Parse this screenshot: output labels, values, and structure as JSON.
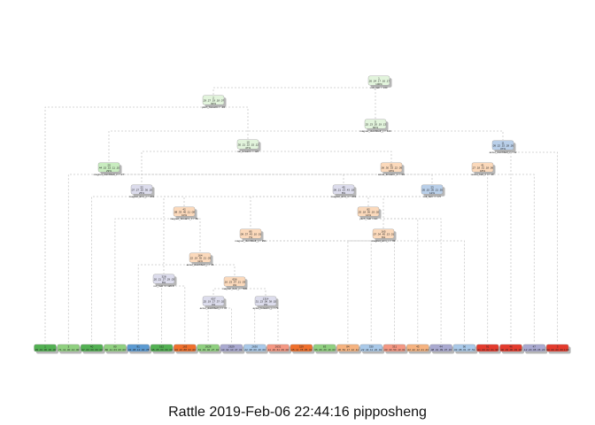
{
  "footer": "Rattle 2019-Feb-06 22:44:16 pipposheng",
  "palette": {
    "green": "#c8ecbf",
    "light_green": "#e2f4dc",
    "peach": "#fbd9bb",
    "lavender": "#dcdcec",
    "blue": "#b9cfe9",
    "salmon": "#f6c2b2",
    "leaf_green_dark": "#52b152",
    "leaf_green": "#8fd07f",
    "leaf_blue": "#5b9ad2",
    "leaf_orange": "#f06f2b",
    "leaf_peach": "#f6b37f",
    "leaf_lavender": "#a9a9d0",
    "leaf_light_blue": "#a9c9e9",
    "leaf_salmon": "#f59782",
    "leaf_red": "#e43a2c",
    "edge": "#c8c8c8",
    "shadow": "#b7b7b7",
    "node_border": "#9a9a9a"
  },
  "nodes": [
    {
      "id": "1",
      "color": "light_green",
      "text": "1\n.26 .24 .17 .16 .17\n100%",
      "split": "roll_belt < 130"
    },
    {
      "id": "2",
      "color": "light_green",
      "text": "2\n.29 .27 .19 .18 .07\n93%",
      "split": "pitch_forearm < -34"
    },
    {
      "id": "3",
      "color": "light_green",
      "text": "5\n.25 .23 .20 .19 .13\n84%",
      "split": "magnet_dumbbell_y < 440"
    },
    {
      "id": "4",
      "color": "light_green",
      "text": "10\n.30 .21 .22 .15 .12\n47%",
      "split": "roll_forearm < 124"
    },
    {
      "id": "5",
      "color": "blue",
      "text": "11\n.09 .22 .15 .28 .26\n37%",
      "split": "accel_dumbbell_z < 12"
    },
    {
      "id": "6",
      "color": "green",
      "text": "20\n.44 .15 .15 .11 .10\n29%",
      "split": "magnet_dumbbell_z < -27"
    },
    {
      "id": "7",
      "color": "peach",
      "text": "21\n.06 .30 .33 .22 .09\n18%",
      "split": "accel_forearm_x < -90"
    },
    {
      "id": "8",
      "color": "lavender",
      "text": "22\n.07 .27 .10 .36 .20\n25%",
      "split": "magnet_arm_y < 291"
    },
    {
      "id": "9",
      "color": "blue",
      "text": "23\n.05 .15 .05 .21 .55\n12%",
      "split": "roll_belt >= 0.5"
    },
    {
      "id": "10",
      "color": "peach",
      "text": "41\n.27 .18 .31 .18 .06\n18%",
      "split": "accel_belt_z >= 19"
    },
    {
      "id": "11",
      "color": "peach",
      "text": "42\n.08 .33 .40 .11 .08\n10%",
      "split": "magnet_forearm_z < 89"
    },
    {
      "id": "12",
      "color": "lavender",
      "text": "45\n.06 .21 .13 .43 .18\n8%",
      "split": "magnet_arm_x < 291"
    },
    {
      "id": "13",
      "color": "peach",
      "text": "82\n.25 .18 .36 .19 .02\n14%",
      "split": "pitch_belt < 42"
    },
    {
      "id": "14",
      "color": "peach",
      "text": "85\n.09 .37 .43 .10 .01\n7%",
      "split": "magnet_dumbbell_y < 291"
    },
    {
      "id": "15",
      "color": "peach",
      "text": "165\n.07 .34 .45 .13 .01\n6%",
      "split": "magnet_arm_x < 99"
    },
    {
      "id": "16",
      "color": "peach",
      "text": "164\n.22 .19 .35 .21 .03\n11%",
      "split": "accel_dumbbell_y < 46"
    },
    {
      "id": "17",
      "color": "lavender",
      "text": "328\n.20 .21 .27 .29 .03\n8%",
      "split": "roll_belt >= 126.5"
    },
    {
      "id": "18",
      "color": "peach",
      "text": "656\n.16 .23 .37 .21 .03\n4%",
      "split": "magnet_belt_y < 590"
    },
    {
      "id": "19",
      "color": "lavender",
      "text": "657\n.25 .19 .17 .37 .02\n4%",
      "split": "accel_dumbbell_z < 37"
    },
    {
      "id": "20",
      "color": "lavender",
      "text": "1314\n.31 .23 .06 .38 .02\n3%",
      "split": "accel_forearm_y < 73"
    },
    {
      "id": "21",
      "color": "salmon",
      "text": "1315\n.07 .17 .55 .31 .00\n1%",
      "split": "roll_dumbbell < 37"
    }
  ],
  "leaves": [
    {
      "color": "leaf_green_dark",
      "text": "1\n.45 .01 .00 .00 .00"
    },
    {
      "color": "leaf_green",
      "text": "3\n.71 .11 .00 .10 .00"
    },
    {
      "color": "leaf_green_dark",
      "text": "40\n.97 .03 .00 .00 .00"
    },
    {
      "color": "leaf_green",
      "text": "80\n.80 .11 .03 .06 .00"
    },
    {
      "color": "leaf_blue",
      "text": "81\n.02 .08 .12 .00 .78"
    },
    {
      "color": "leaf_green_dark",
      "text": "162\n.95 .05 .00 .00 .00"
    },
    {
      "color": "leaf_orange",
      "text": "163\n.00 .10 .88 .02 .00"
    },
    {
      "color": "leaf_green",
      "text": "2628\n.51 .19 .02 .27 .01"
    },
    {
      "color": "leaf_lavender",
      "text": "2629\n.10 .32 .10 .47 .01"
    },
    {
      "color": "leaf_light_blue",
      "text": "2630\n.22 .38 .00 .40 .00"
    },
    {
      "color": "leaf_salmon",
      "text": "2631\n.11 .19 .61 .09 .00"
    },
    {
      "color": "leaf_orange",
      "text": "329\n.05 .11 .78 .05 .01"
    },
    {
      "color": "leaf_green",
      "text": "83\n.55 .06 .20 .16 .03"
    },
    {
      "color": "leaf_peach",
      "text": "84\n.06 .54 .17 .12 .11"
    },
    {
      "color": "leaf_light_blue",
      "text": "330\n.22 .44 .11 .22 .01"
    },
    {
      "color": "leaf_salmon",
      "text": "331\n.03 .33 .50 .13 .01"
    },
    {
      "color": "leaf_peach",
      "text": "43\n.02 .42 .12 .21 .23"
    },
    {
      "color": "leaf_lavender",
      "text": "44\n.08 .31 .09 .37 .15"
    },
    {
      "color": "leaf_light_blue",
      "text": "90\n.03 .08 .01 .37 .51"
    },
    {
      "color": "leaf_red",
      "text": "91\n.01 .00 .02 .01 .96"
    },
    {
      "color": "leaf_red",
      "text": "46\n.00 .03 .00 .03 .94"
    },
    {
      "color": "leaf_lavender",
      "text": "47\n.12 .20 .08 .36 .24"
    },
    {
      "color": "leaf_red",
      "text": "3\n.00 .00 .00 .00 1.00"
    }
  ]
}
